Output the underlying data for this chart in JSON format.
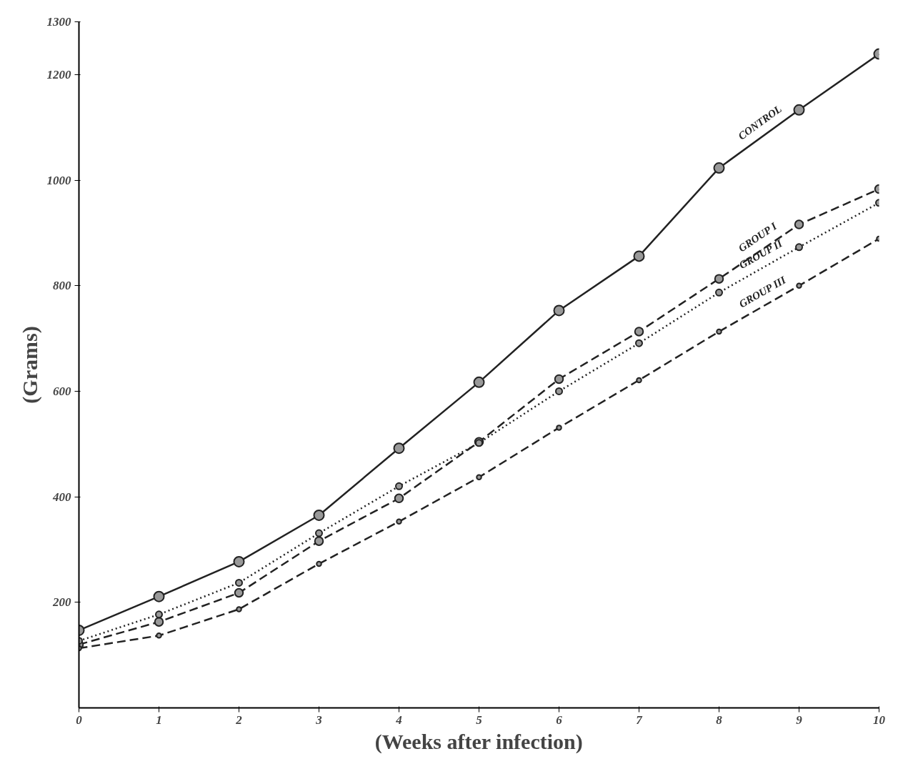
{
  "chart_data": {
    "type": "line",
    "xlabel": "(Weeks after infection)",
    "ylabel": "(Grams)",
    "x": [
      0,
      1,
      2,
      3,
      4,
      5,
      6,
      7,
      8,
      9,
      10
    ],
    "series": [
      {
        "name": "CONTROL",
        "color": "#222222",
        "line_style": "solid",
        "values": [
          147,
          211,
          277,
          365,
          492,
          617,
          753,
          856,
          1023,
          1133,
          1239
        ]
      },
      {
        "name": "GROUP I",
        "color": "#222222",
        "line_style": "dashed",
        "values": [
          120,
          163,
          218,
          316,
          397,
          504,
          623,
          713,
          813,
          916,
          983
        ]
      },
      {
        "name": "GROUP II",
        "color": "#222222",
        "line_style": "dotted",
        "values": [
          127,
          177,
          237,
          331,
          420,
          502,
          600,
          691,
          787,
          873,
          957
        ]
      },
      {
        "name": "GROUP III",
        "color": "#222222",
        "line_style": "dashed",
        "values": [
          113,
          137,
          187,
          273,
          353,
          437,
          531,
          621,
          713,
          800,
          889
        ]
      }
    ],
    "xlim": [
      0,
      10
    ],
    "ylim": [
      0,
      1300
    ],
    "xticks": [
      0,
      1,
      2,
      3,
      4,
      5,
      6,
      7,
      8,
      9,
      10
    ],
    "yticks": [
      200,
      400,
      600,
      800,
      1000,
      1200,
      1300
    ],
    "marker": "circle",
    "grid": false,
    "legend": false
  }
}
